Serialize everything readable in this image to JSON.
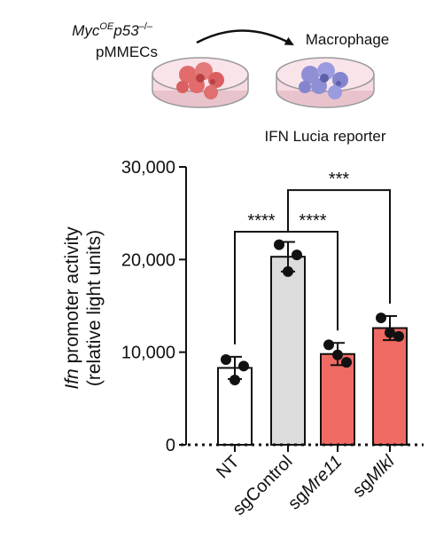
{
  "schematic": {
    "source_genotype_parts": [
      "Myc",
      "OE",
      "p53",
      "–/–"
    ],
    "source_label": "pMMECs",
    "target_label": "Macrophage",
    "reporter_label": "IFN Lucia reporter",
    "colors": {
      "dish": "#f6dbe2",
      "dish_rim": "#9a9a9a",
      "tumor_cells": "#e26b6b",
      "macrophages": "#8f8fd6"
    }
  },
  "chart_data": {
    "type": "bar",
    "ylabel_italic": "Ifn",
    "ylabel_rest": " promoter activity",
    "ylabel_line2": "(relative light units)",
    "ylim": [
      0,
      30000
    ],
    "yticks": [
      0,
      10000,
      20000,
      30000
    ],
    "ytick_labels": [
      "0",
      "10,000",
      "20,000",
      "30,000"
    ],
    "categories": [
      {
        "prefix": "",
        "italic": "",
        "text": "NT"
      },
      {
        "prefix": "",
        "italic": "",
        "text": "sgControl"
      },
      {
        "prefix": "sg",
        "italic": "Mre11",
        "text": ""
      },
      {
        "prefix": "sg",
        "italic": "Mlkl",
        "text": ""
      }
    ],
    "means": [
      8300,
      20300,
      9800,
      12600
    ],
    "sd": [
      1200,
      1600,
      1200,
      1300
    ],
    "points": [
      [
        9200,
        8500,
        7000
      ],
      [
        21600,
        20500,
        18700
      ],
      [
        10800,
        8900,
        9700
      ],
      [
        13700,
        11700,
        12100
      ]
    ],
    "bar_colors": [
      "#ffffff",
      "#dcdcdc",
      "#ef6a63",
      "#ef6a63"
    ],
    "significance": [
      {
        "from": 0,
        "to": 1,
        "label": "****",
        "level": 23000
      },
      {
        "from": 1,
        "to": 2,
        "label": "****",
        "level": 23000
      },
      {
        "from": 1,
        "to": 3,
        "label": "***",
        "level": 27500
      }
    ]
  }
}
